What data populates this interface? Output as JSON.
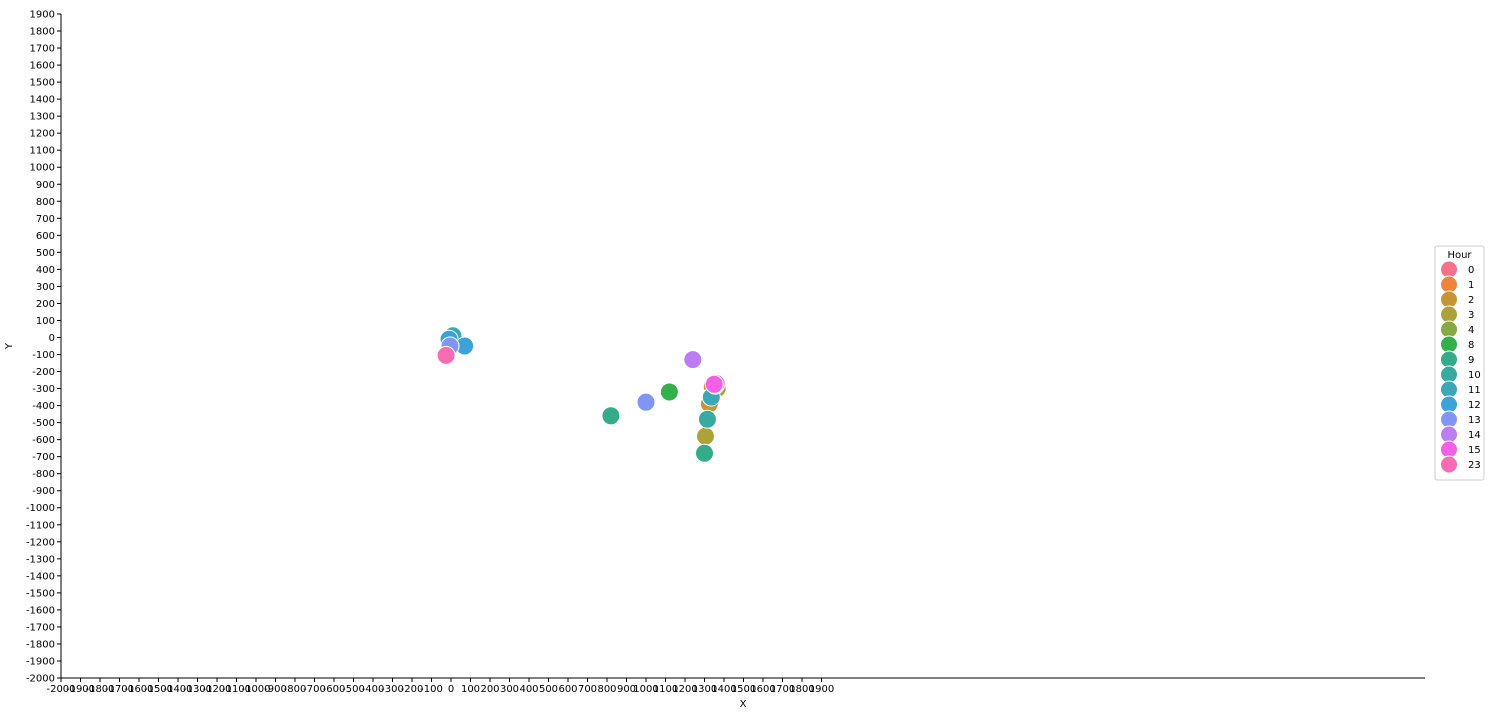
{
  "chart_data": {
    "type": "scatter",
    "xlabel": "X",
    "ylabel": "Y",
    "xlim": [
      -2000,
      1900
    ],
    "ylim": [
      -2000,
      1900
    ],
    "x_ticks": [
      "-2000",
      "-1900",
      "-1800",
      "-1700",
      "-1600",
      "-1500",
      "-1400",
      "-1300",
      "-1200",
      "-1100",
      "-1000",
      "-900",
      "-800",
      "-700",
      "-600",
      "-500",
      "-400",
      "-300",
      "-200",
      "-100",
      "0",
      "100",
      "200",
      "300",
      "400",
      "500",
      "600",
      "700",
      "800",
      "900",
      "1000",
      "1100",
      "1200",
      "1300",
      "1400",
      "1500",
      "1600",
      "1700",
      "1800",
      "1900"
    ],
    "y_ticks": [
      "1900",
      "1800",
      "1700",
      "1600",
      "1500",
      "1400",
      "1300",
      "1200",
      "1100",
      "1000",
      "900",
      "800",
      "700",
      "600",
      "500",
      "400",
      "300",
      "200",
      "100",
      "0",
      "-100",
      "-200",
      "-300",
      "-400",
      "-500",
      "-600",
      "-700",
      "-800",
      "-900",
      "-1000",
      "-1100",
      "-1200",
      "-1300",
      "-1400",
      "-1500",
      "-1600",
      "-1700",
      "-1800",
      "-1900",
      "-2000"
    ],
    "grid": false,
    "legend": {
      "title": "Hour",
      "placement": "center-right",
      "entries": [
        {
          "label": "0",
          "color": "#f77189"
        },
        {
          "label": "1",
          "color": "#f0843d"
        },
        {
          "label": "2",
          "color": "#c69432"
        },
        {
          "label": "3",
          "color": "#ada139"
        },
        {
          "label": "4",
          "color": "#86a942"
        },
        {
          "label": "8",
          "color": "#32b14b"
        },
        {
          "label": "9",
          "color": "#35ac89"
        },
        {
          "label": "10",
          "color": "#37aaa1"
        },
        {
          "label": "11",
          "color": "#3aa8b6"
        },
        {
          "label": "12",
          "color": "#3ba3d8"
        },
        {
          "label": "13",
          "color": "#7f96f4"
        },
        {
          "label": "14",
          "color": "#bc7df4"
        },
        {
          "label": "15",
          "color": "#f45fe6"
        },
        {
          "label": "23",
          "color": "#f66db4"
        }
      ]
    },
    "series": [
      {
        "hour": "0",
        "points": [
          [
            -20,
            -100
          ],
          [
            1345,
            -290
          ]
        ]
      },
      {
        "hour": "1",
        "points": [
          [
            1340,
            -290
          ]
        ]
      },
      {
        "hour": "2",
        "points": [
          [
            1325,
            -390
          ]
        ]
      },
      {
        "hour": "3",
        "points": [
          [
            1305,
            -580
          ],
          [
            1365,
            -300
          ]
        ]
      },
      {
        "hour": "8",
        "points": [
          [
            1120,
            -320
          ]
        ]
      },
      {
        "hour": "9",
        "points": [
          [
            820,
            -460
          ],
          [
            1300,
            -680
          ]
        ]
      },
      {
        "hour": "10",
        "points": [
          [
            1315,
            -480
          ]
        ]
      },
      {
        "hour": "11",
        "points": [
          [
            10,
            10
          ],
          [
            1335,
            -350
          ]
        ]
      },
      {
        "hour": "12",
        "points": [
          [
            -10,
            -10
          ],
          [
            70,
            -50
          ]
        ]
      },
      {
        "hour": "13",
        "points": [
          [
            -5,
            -50
          ],
          [
            1000,
            -380
          ]
        ]
      },
      {
        "hour": "14",
        "points": [
          [
            1240,
            -130
          ],
          [
            1355,
            -280
          ],
          [
            1360,
            -270
          ]
        ]
      },
      {
        "hour": "15",
        "points": [
          [
            1350,
            -275
          ]
        ]
      },
      {
        "hour": "23",
        "points": [
          [
            -25,
            -105
          ]
        ]
      }
    ]
  }
}
